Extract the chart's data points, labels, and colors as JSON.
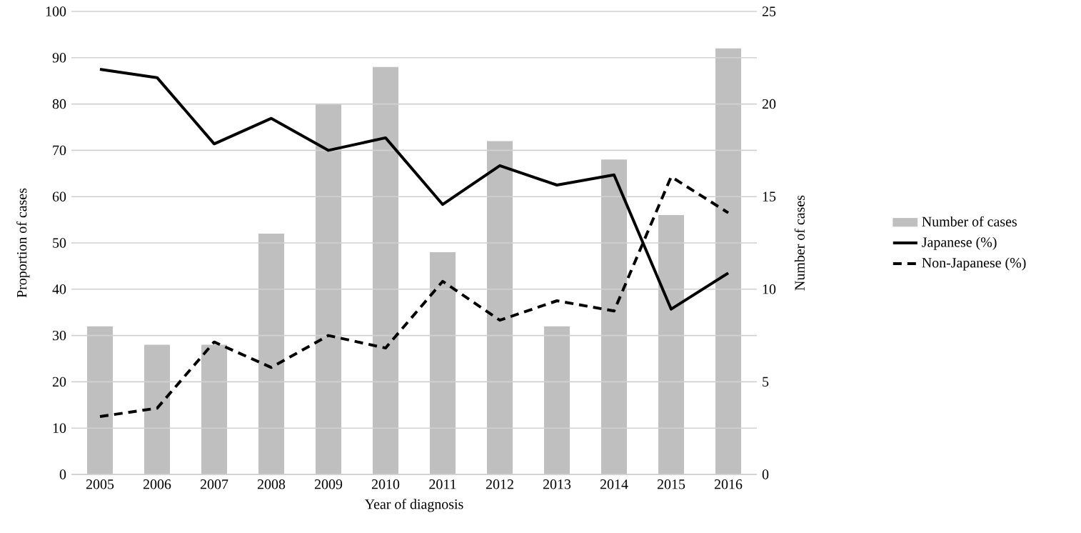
{
  "chart_data": {
    "type": "line",
    "xlabel": "Year of diagnosis",
    "ylabel": "Proportion of cases",
    "y2label": "Number of cases",
    "categories": [
      "2005",
      "2006",
      "2007",
      "2008",
      "2009",
      "2010",
      "2011",
      "2012",
      "2013",
      "2014",
      "2015",
      "2016"
    ],
    "series": [
      {
        "name": "Number of cases",
        "type": "bar",
        "axis": "y2",
        "color": "#bfbfbf",
        "values": [
          8,
          7,
          7,
          13,
          20,
          22,
          12,
          18,
          8,
          17,
          14,
          23
        ]
      },
      {
        "name": "Japanese (%)",
        "color": "#000000",
        "line_style": "solid",
        "values": [
          87.5,
          85.7,
          71.4,
          76.9,
          70.0,
          72.7,
          58.3,
          66.7,
          62.5,
          64.7,
          35.7,
          43.5
        ]
      },
      {
        "name": "Non-Japanese (%)",
        "color": "#000000",
        "line_style": "dashed",
        "values": [
          12.5,
          14.3,
          28.6,
          23.1,
          30.0,
          27.3,
          41.7,
          33.3,
          37.5,
          35.3,
          64.3,
          56.5
        ]
      }
    ],
    "ylim": [
      0,
      100
    ],
    "yticks": [
      0,
      10,
      20,
      30,
      40,
      50,
      60,
      70,
      80,
      90,
      100
    ],
    "y2lim": [
      0,
      25
    ],
    "y2ticks": [
      0,
      5,
      10,
      15,
      20,
      25
    ],
    "grid": "y",
    "legend": "right",
    "marker": "none"
  }
}
